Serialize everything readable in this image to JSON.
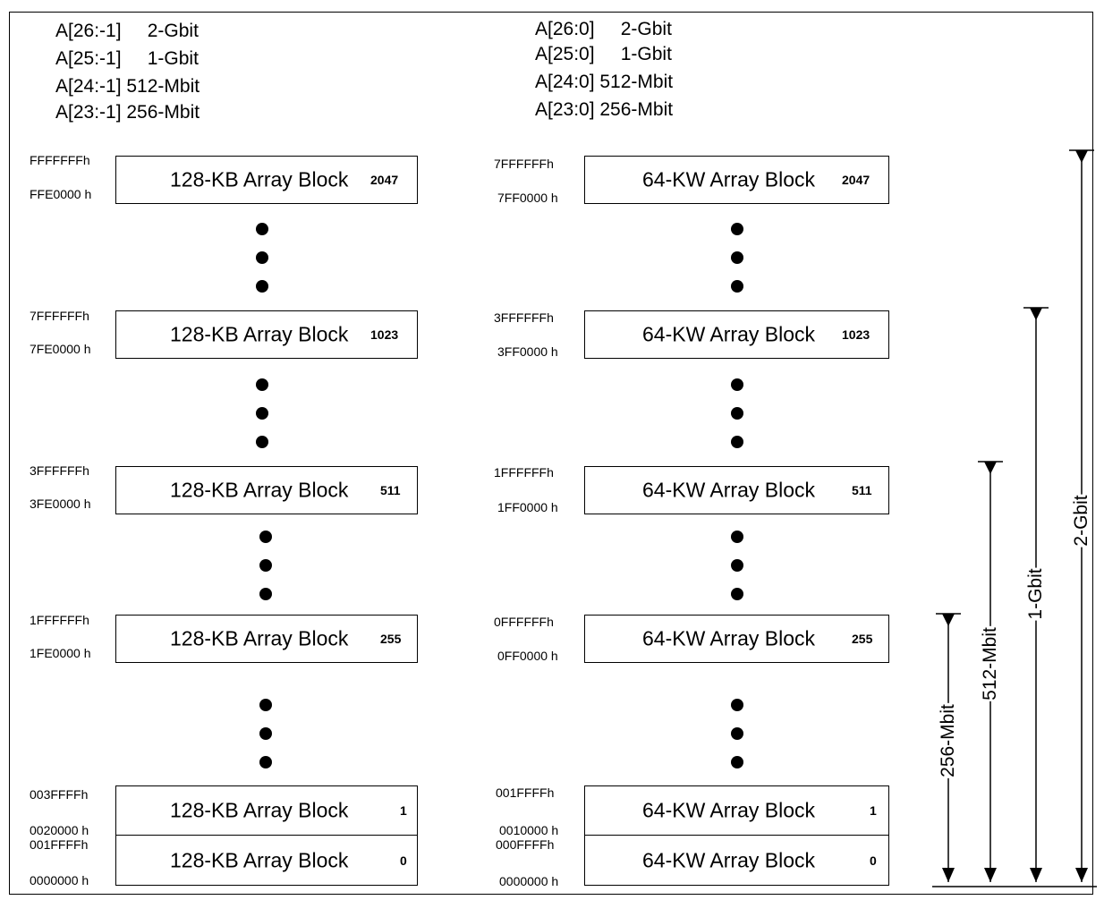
{
  "headers": {
    "left": [
      "A[26:-1]     2-Gbit",
      "A[25:-1]     1-Gbit",
      "A[24:-1] 512-Mbit",
      "A[23:-1] 256-Mbit"
    ],
    "right": [
      "A[26:0]     2-Gbit",
      "A[25:0]     1-Gbit",
      "A[24:0] 512-Mbit",
      "A[23:0] 256-Mbit"
    ]
  },
  "left_blocks": [
    {
      "label": "128-KB Array Block",
      "num": "2047",
      "top_addr": "FFFFFFFh",
      "bot_addr": "FFE0000 h"
    },
    {
      "label": "128-KB Array Block",
      "num": "1023",
      "top_addr": "7FFFFFFh",
      "bot_addr": "7FE0000 h"
    },
    {
      "label": "128-KB Array Block",
      "num": "511",
      "top_addr": "3FFFFFFh",
      "bot_addr": "3FE0000 h"
    },
    {
      "label": "128-KB Array Block",
      "num": "255",
      "top_addr": "1FFFFFFh",
      "bot_addr": "1FE0000 h"
    },
    {
      "label": "128-KB Array Block",
      "num": "1",
      "top_addr": "003FFFFh",
      "bot_addr": "0020000 h"
    },
    {
      "label": "128-KB Array Block",
      "num": "0",
      "top_addr": "001FFFFh",
      "bot_addr": "0000000 h"
    }
  ],
  "right_blocks": [
    {
      "label": "64-KW Array Block",
      "num": "2047",
      "top_addr": "7FFFFFFh",
      "bot_addr": "7FF0000 h"
    },
    {
      "label": "64-KW Array Block",
      "num": "1023",
      "top_addr": "3FFFFFFh",
      "bot_addr": "3FF0000 h"
    },
    {
      "label": "64-KW Array Block",
      "num": "511",
      "top_addr": "1FFFFFFh",
      "bot_addr": "1FF0000 h"
    },
    {
      "label": "64-KW Array Block",
      "num": "255",
      "top_addr": "0FFFFFFh",
      "bot_addr": "0FF0000 h"
    },
    {
      "label": "64-KW Array Block",
      "num": "1",
      "top_addr": "001FFFFh",
      "bot_addr": "0010000 h"
    },
    {
      "label": "64-KW Array Block",
      "num": "0",
      "top_addr": "000FFFFh",
      "bot_addr": "0000000 h"
    }
  ],
  "dimensions": [
    "256-Mbit",
    "512-Mbit",
    "1-Gbit",
    "2-Gbit"
  ]
}
